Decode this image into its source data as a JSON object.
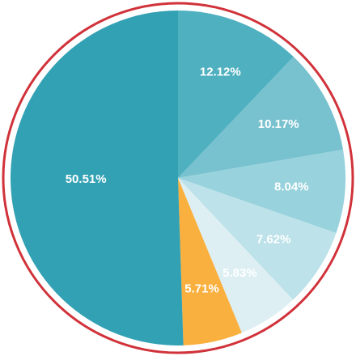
{
  "chart_data": {
    "type": "pie",
    "values": [
      12.12,
      10.17,
      8.04,
      7.62,
      5.83,
      5.71,
      50.51
    ],
    "value_labels": [
      "12.12%",
      "10.17%",
      "8.04%",
      "7.62%",
      "5.83%",
      "5.71%",
      "50.51%"
    ],
    "colors": [
      "#4fb0c0",
      "#78c2cf",
      "#98d2dc",
      "#bde2e9",
      "#ddeff3",
      "#f9b03f",
      "#33a1b4"
    ]
  }
}
